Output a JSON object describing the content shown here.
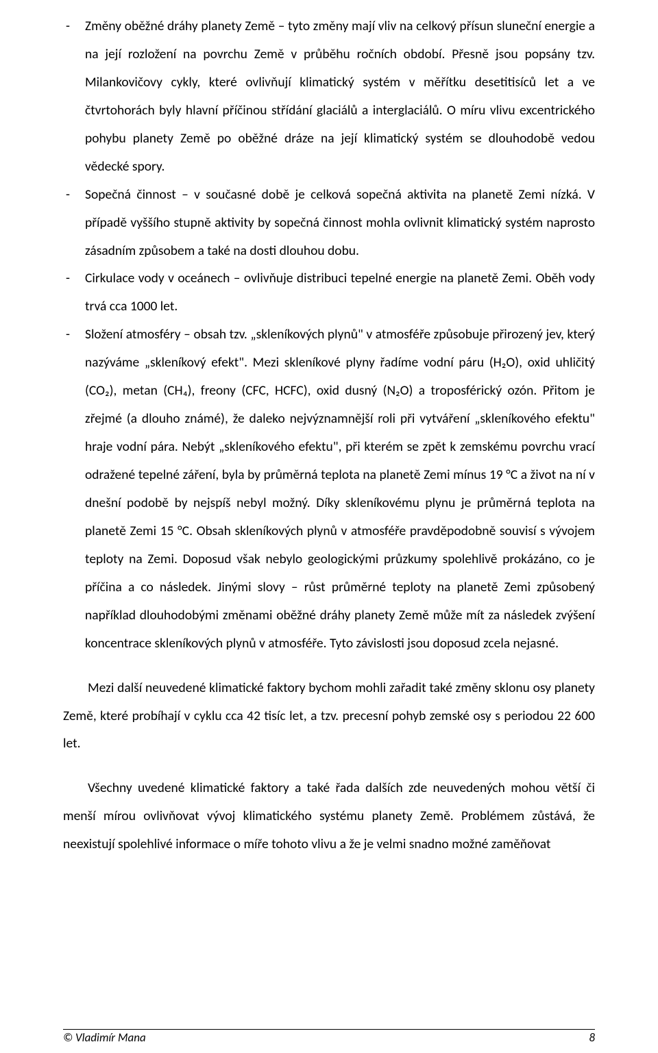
{
  "bullets": [
    "Změny oběžné dráhy planety Země – tyto změny mají vliv na celkový přísun sluneční energie a na její rozložení na povrchu Země v průběhu ročních období. Přesně jsou popsány tzv. Milankovičovy cykly, které ovlivňují klimatický systém v měřítku desetitisíců let a ve čtvrtohorách byly hlavní příčinou střídání glaciálů a interglaciálů. O míru vlivu excentrického pohybu planety Země po oběžné dráze na její klimatický systém se dlouhodobě vedou vědecké spory.",
    "Sopečná činnost – v současné době je celková sopečná aktivita na planetě Zemi nízká. V případě vyššího stupně aktivity by sopečná činnost mohla ovlivnit klimatický systém naprosto zásadním způsobem a také na dosti dlouhou dobu.",
    "Cirkulace vody v oceánech – ovlivňuje distribuci tepelné energie na planetě Zemi. Oběh vody trvá cca 1000 let.",
    "Složení atmosféry – obsah tzv. „skleníkových plynů\" v atmosféře způsobuje přirozený jev, který nazýváme „skleníkový efekt\". Mezi skleníkové plyny řadíme vodní páru (H₂O), oxid uhličitý (CO₂), metan (CH₄), freony (CFC, HCFC), oxid dusný (N₂O) a troposférický ozón. Přitom je zřejmé (a dlouho známé), že daleko nejvýznamnější roli při vytváření „skleníkového efektu\" hraje vodní pára. Nebýt „skleníkového efektu\", při kterém se zpět k zemskému povrchu vrací odražené tepelné záření, byla by průměrná teplota na planetě Zemi mínus 19 °C a život na ní v dnešní podobě by nejspíš nebyl možný. Díky skleníkovému plynu je průměrná teplota na planetě Zemi 15 °C. Obsah skleníkových plynů v atmosféře pravděpodobně souvisí s vývojem teploty na Zemi. Doposud však nebylo geologickými průzkumy spolehlivě prokázáno, co je příčina a co následek. Jinými slovy – růst průměrné teploty na planetě Zemi způsobený například dlouhodobými změnami oběžné dráhy planety Země může mít za následek zvýšení koncentrace skleníkových plynů v atmosféře. Tyto závislosti jsou doposud zcela nejasné."
  ],
  "paras": [
    "Mezi další neuvedené klimatické faktory bychom mohli zařadit také změny sklonu osy planety Země, které probíhají v cyklu cca 42 tisíc let, a tzv. precesní pohyb zemské osy s periodou 22 600 let.",
    "Všechny uvedené klimatické faktory a také řada dalších zde neuvedených mohou větší či menší mírou ovlivňovat vývoj klimatického systému planety Země. Problémem zůstává, že neexistují spolehlivé informace o míře tohoto vlivu a že je velmi snadno možné zaměňovat"
  ],
  "footer": {
    "author": "© Vladimír Mana",
    "page": "8"
  }
}
